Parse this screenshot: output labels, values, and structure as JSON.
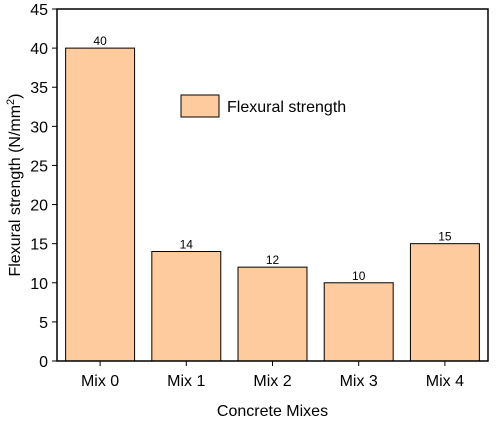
{
  "chart_data": {
    "type": "bar",
    "categories": [
      "Mix 0",
      "Mix 1",
      "Mix 2",
      "Mix 3",
      "Mix 4"
    ],
    "series": [
      {
        "name": "Flexural strength",
        "values": [
          40,
          14,
          12,
          10,
          15
        ]
      }
    ],
    "data_labels": [
      "40",
      "14",
      "12",
      "10",
      "15"
    ],
    "xlabel": "Concrete Mixes",
    "ylabel": "Flexural strength (N/mm",
    "ylabel_sup": "2",
    "ylabel_tail": ")",
    "ylim": [
      0,
      45
    ],
    "yticks": [
      0,
      5,
      10,
      15,
      20,
      25,
      30,
      35,
      40,
      45
    ],
    "legend_position": "upper-center",
    "grid": false,
    "bar_color": "#FDCB9E",
    "bar_edge_color": "#000000"
  }
}
